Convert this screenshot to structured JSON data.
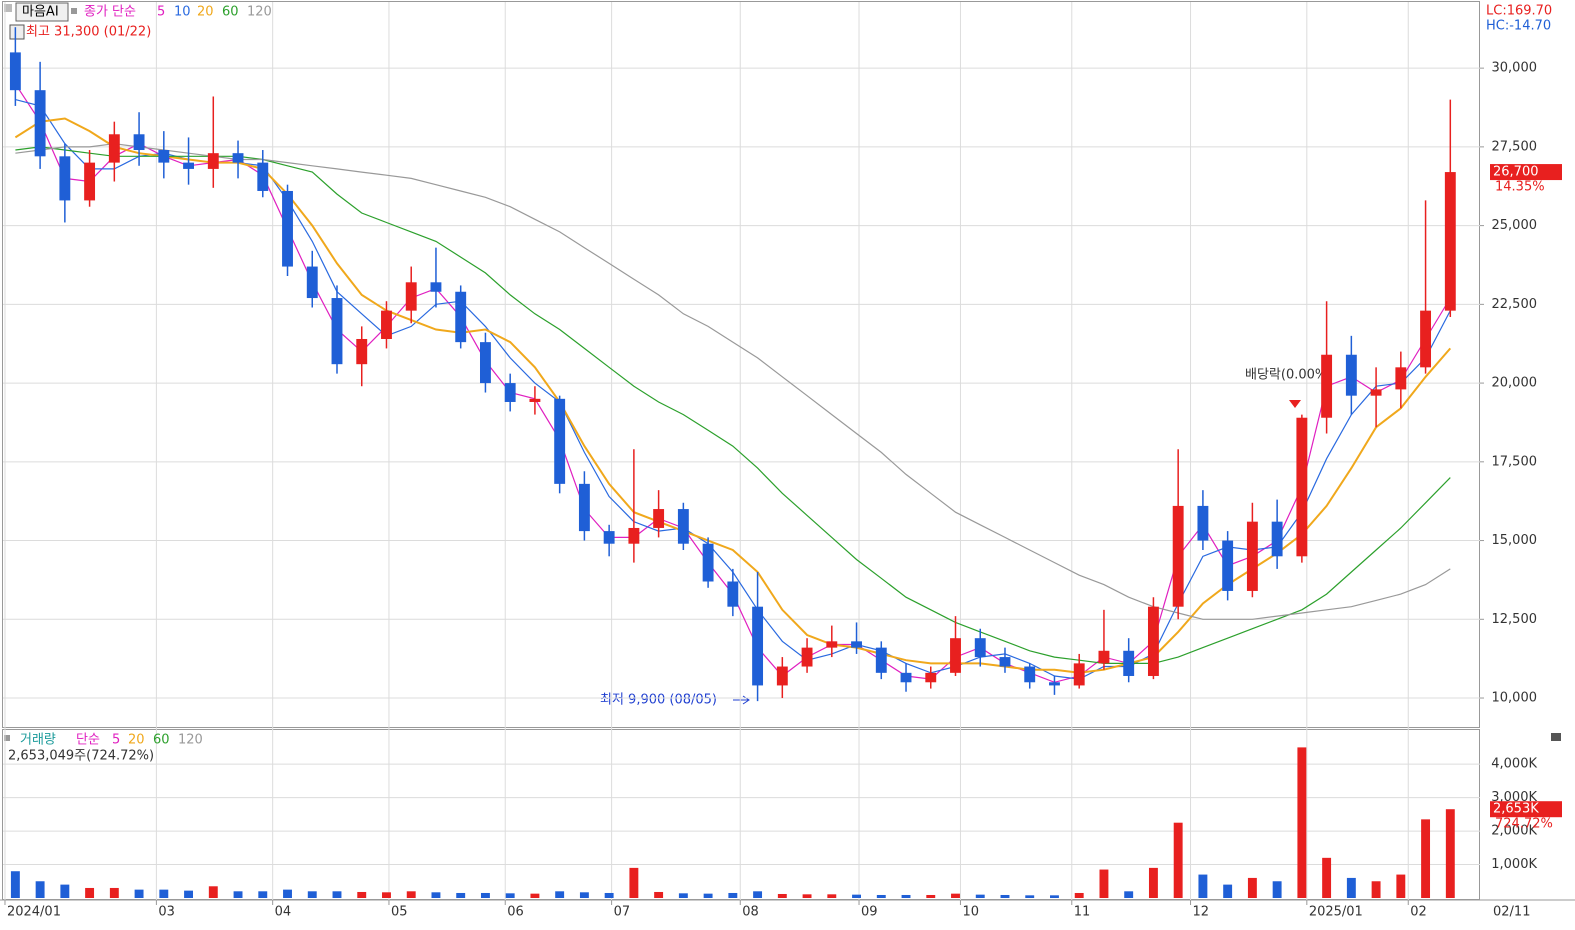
{
  "chart_data": [
    {
      "type": "candlestick",
      "name": "마음AI",
      "legend_prefix": "종가 단순",
      "up_color": "#e8201f",
      "down_color": "#1f5fd6",
      "open": [
        30500,
        29300,
        27200,
        25800,
        27000,
        27900,
        27400,
        27000,
        26800,
        27300,
        27000,
        26100,
        23700,
        22700,
        20600,
        21400,
        22300,
        23200,
        22900,
        21300,
        20000,
        19400,
        19500,
        16800,
        15300,
        14900,
        15400,
        16000,
        14900,
        13700,
        12900,
        10400,
        11000,
        11600,
        11800,
        11600,
        10800,
        10500,
        10800,
        11900,
        11300,
        11000,
        10500,
        10400,
        11100,
        11500,
        10700,
        12900,
        16100,
        15000,
        13400,
        15600,
        14500,
        18900,
        20900,
        19600,
        19800,
        20500,
        22300
      ],
      "high": [
        31300,
        30200,
        27600,
        27400,
        28300,
        28600,
        28000,
        27800,
        29100,
        27700,
        27400,
        26300,
        24200,
        23100,
        21800,
        22600,
        23700,
        24300,
        23100,
        21600,
        20300,
        19900,
        19600,
        17200,
        15500,
        17900,
        16600,
        16200,
        15100,
        14100,
        14000,
        11300,
        11900,
        12300,
        12400,
        11800,
        11100,
        11000,
        12600,
        12200,
        11600,
        11100,
        10700,
        11400,
        12800,
        11900,
        13200,
        17900,
        16600,
        15300,
        16200,
        16300,
        19000,
        22600,
        21500,
        20500,
        21000,
        25800,
        29000
      ],
      "low": [
        28800,
        26800,
        25100,
        25600,
        26400,
        26900,
        26500,
        26300,
        26200,
        26500,
        25900,
        23400,
        22400,
        20300,
        19900,
        21100,
        21900,
        22400,
        21100,
        19700,
        19100,
        19000,
        16500,
        15000,
        14500,
        14300,
        15100,
        14700,
        13500,
        12600,
        9900,
        10000,
        10800,
        11300,
        11400,
        10600,
        10200,
        10300,
        10700,
        11000,
        10800,
        10300,
        10100,
        10300,
        10900,
        10500,
        10600,
        12500,
        14700,
        13100,
        13200,
        14100,
        14300,
        18400,
        19000,
        18600,
        19200,
        20300,
        22100
      ],
      "close": [
        29300,
        27200,
        25800,
        27000,
        27900,
        27400,
        27000,
        26800,
        27300,
        27000,
        26100,
        23700,
        22700,
        20600,
        21400,
        22300,
        23200,
        22900,
        21300,
        20000,
        19400,
        19500,
        16800,
        15300,
        14900,
        15400,
        16000,
        14900,
        13700,
        12900,
        10400,
        11000,
        11600,
        11800,
        11600,
        10800,
        10500,
        10800,
        11900,
        11300,
        11000,
        10500,
        10400,
        11100,
        11500,
        10700,
        12900,
        16100,
        15000,
        13400,
        15600,
        14500,
        18900,
        20900,
        19600,
        19800,
        20500,
        22300,
        26700
      ],
      "series": [
        {
          "name": "5",
          "color": "#e020c0",
          "values": [
            29500,
            28300,
            26500,
            26400,
            27200,
            27600,
            27200,
            26900,
            27000,
            27100,
            26600,
            24900,
            23200,
            21700,
            21000,
            21800,
            22700,
            23000,
            22100,
            20700,
            19700,
            19500,
            18200,
            16000,
            15100,
            15100,
            15700,
            15400,
            14300,
            13300,
            11600,
            10700,
            11300,
            11700,
            11700,
            11200,
            10700,
            10600,
            11300,
            11600,
            11100,
            10800,
            10500,
            10700,
            11300,
            11100,
            11800,
            14500,
            15500,
            14200,
            14500,
            15000,
            16700,
            19900,
            20200,
            19700,
            20100,
            21400,
            22700
          ]
        },
        {
          "name": "10",
          "color": "#2a6ae0",
          "values": [
            29000,
            28800,
            27600,
            26800,
            26800,
            27200,
            27300,
            27100,
            27000,
            27000,
            26900,
            25800,
            24500,
            22900,
            22200,
            21500,
            21800,
            22500,
            22600,
            21800,
            20800,
            20000,
            19400,
            17800,
            16400,
            15600,
            15300,
            15400,
            14900,
            14000,
            12800,
            11800,
            11200,
            11400,
            11700,
            11500,
            11100,
            10800,
            11000,
            11300,
            11400,
            11100,
            10700,
            10600,
            11000,
            11000,
            11400,
            13000,
            14500,
            14800,
            14700,
            14800,
            15900,
            17600,
            19000,
            19900,
            20000,
            20800,
            22300
          ]
        },
        {
          "name": "20",
          "color": "#f0a81c",
          "values": [
            27800,
            28300,
            28400,
            28000,
            27500,
            27300,
            27200,
            27100,
            27000,
            27000,
            26800,
            26000,
            25000,
            23800,
            22800,
            22300,
            22000,
            21700,
            21600,
            21700,
            21300,
            20500,
            19400,
            18000,
            16800,
            15900,
            15600,
            15300,
            15000,
            14700,
            14000,
            12800,
            12000,
            11700,
            11600,
            11400,
            11200,
            11100,
            11100,
            11100,
            11000,
            10900,
            10900,
            10800,
            10900,
            11100,
            11300,
            12100,
            13000,
            13600,
            14100,
            14600,
            15200,
            16100,
            17300,
            18600,
            19200,
            20200,
            21100
          ]
        },
        {
          "name": "60",
          "color": "#2ca02c",
          "values": [
            27400,
            27500,
            27400,
            27300,
            27200,
            27200,
            27200,
            27200,
            27200,
            27200,
            27100,
            26900,
            26700,
            26000,
            25400,
            25100,
            24800,
            24500,
            24000,
            23500,
            22800,
            22200,
            21700,
            21100,
            20500,
            19900,
            19400,
            19000,
            18500,
            18000,
            17300,
            16500,
            15800,
            15100,
            14400,
            13800,
            13200,
            12800,
            12400,
            12100,
            11800,
            11500,
            11300,
            11200,
            11100,
            11100,
            11100,
            11300,
            11600,
            11900,
            12200,
            12500,
            12800,
            13300,
            14000,
            14700,
            15400,
            16200,
            17000
          ]
        },
        {
          "name": "120",
          "color": "#999999",
          "values": [
            27300,
            27400,
            27500,
            27500,
            27600,
            27500,
            27400,
            27300,
            27200,
            27100,
            27100,
            27000,
            26900,
            26800,
            26700,
            26600,
            26500,
            26300,
            26100,
            25900,
            25600,
            25200,
            24800,
            24300,
            23800,
            23300,
            22800,
            22200,
            21800,
            21300,
            20800,
            20200,
            19600,
            19000,
            18400,
            17800,
            17100,
            16500,
            15900,
            15500,
            15100,
            14700,
            14300,
            13900,
            13600,
            13200,
            12900,
            12700,
            12500,
            12500,
            12500,
            12600,
            12700,
            12800,
            12900,
            13100,
            13300,
            13600,
            14100
          ]
        }
      ],
      "xlim": [
        -0.5,
        59.2
      ],
      "ylim": [
        9080,
        32100
      ],
      "yticks": [
        {
          "value": 10000,
          "label": "10,000"
        },
        {
          "value": 12500,
          "label": "12,500"
        },
        {
          "value": 15000,
          "label": "15,000"
        },
        {
          "value": 17500,
          "label": "17,500"
        },
        {
          "value": 20000,
          "label": "20,000"
        },
        {
          "value": 22500,
          "label": "22,500"
        },
        {
          "value": 25000,
          "label": "25,000"
        },
        {
          "value": 27500,
          "label": "27,500"
        },
        {
          "value": 30000,
          "label": "30,000"
        }
      ],
      "grid": true,
      "high_note": "최고 31,300 (01/22)",
      "low_note": "최저 9,900 (08/05)",
      "event_note": "배당락(0.00%)",
      "lc": "LC:169.70",
      "hc": "HC:-14.70",
      "last_price": {
        "value": 26700,
        "label": "26,700"
      },
      "change": "14.35%"
    },
    {
      "type": "bar",
      "legend_prefix": "거래량",
      "legend_method": "단순",
      "legend_items": [
        {
          "name": "5",
          "color": "#e020c0"
        },
        {
          "name": "20",
          "color": "#f0a81c"
        },
        {
          "name": "60",
          "color": "#2ca02c"
        },
        {
          "name": "120",
          "color": "#999999"
        }
      ],
      "summary": "2,653,049주(724.72%)",
      "values": [
        800,
        500,
        400,
        300,
        300,
        250,
        250,
        220,
        350,
        200,
        200,
        250,
        200,
        200,
        180,
        170,
        200,
        170,
        150,
        150,
        140,
        130,
        200,
        170,
        150,
        900,
        180,
        140,
        130,
        150,
        200,
        120,
        110,
        110,
        100,
        90,
        90,
        90,
        130,
        100,
        90,
        80,
        80,
        150,
        850,
        200,
        900,
        2250,
        700,
        400,
        600,
        500,
        4500,
        1200,
        600,
        500,
        700,
        2350,
        2653
      ],
      "ylim": [
        0,
        4960
      ],
      "yticks": [
        {
          "value": 1000,
          "label": "1,000K"
        },
        {
          "value": 2000,
          "label": "2,000K"
        },
        {
          "value": 3000,
          "label": "3,000K"
        },
        {
          "value": 4000,
          "label": "4,000K"
        }
      ],
      "last_value": {
        "value": 2653,
        "label": "2,653K"
      },
      "ratio": "724.72%",
      "xticks": [
        {
          "value": -0.42,
          "label": "2024/01"
        },
        {
          "value": 5.7,
          "label": "03"
        },
        {
          "value": 10.4,
          "label": "04"
        },
        {
          "value": 15.1,
          "label": "05"
        },
        {
          "value": 19.8,
          "label": "06"
        },
        {
          "value": 24.1,
          "label": "07"
        },
        {
          "value": 29.3,
          "label": "08"
        },
        {
          "value": 34.1,
          "label": "09"
        },
        {
          "value": 38.2,
          "label": "10"
        },
        {
          "value": 42.7,
          "label": "11"
        },
        {
          "value": 47.5,
          "label": "12"
        },
        {
          "value": 52.2,
          "label": "2025/01"
        },
        {
          "value": 56.3,
          "label": "02"
        }
      ],
      "end_date": "02/11"
    }
  ]
}
